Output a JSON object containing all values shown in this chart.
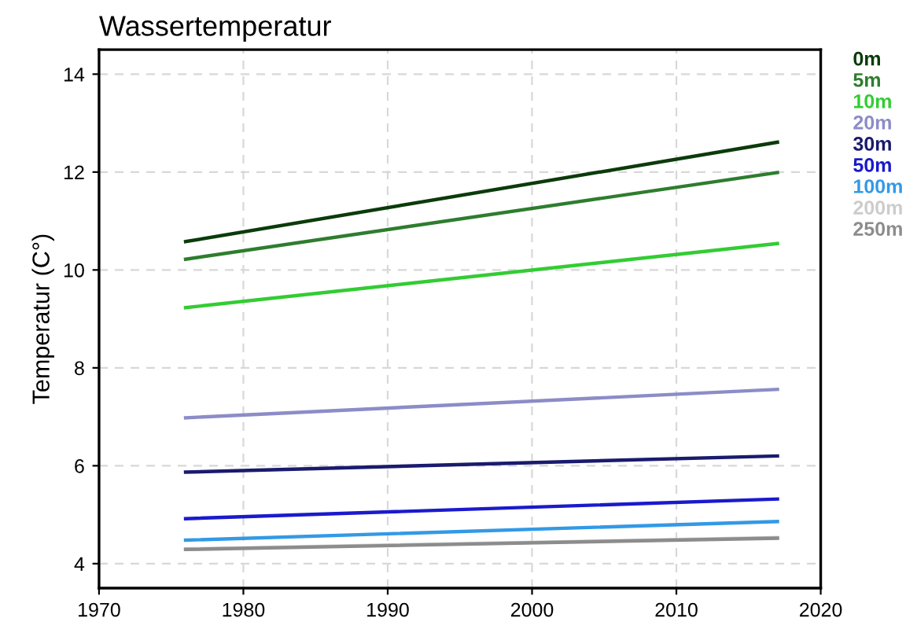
{
  "chart_data": {
    "type": "line",
    "title": "Wassertemperatur",
    "ylabel": "Temperatur (C°)",
    "x": [
      1976,
      2017
    ],
    "series": [
      {
        "name": "0m",
        "color": "#0b3b0b",
        "values": [
          10.58,
          12.61
        ]
      },
      {
        "name": "5m",
        "color": "#2e7d2e",
        "values": [
          10.22,
          11.99
        ]
      },
      {
        "name": "10m",
        "color": "#33cc33",
        "values": [
          9.23,
          10.54
        ]
      },
      {
        "name": "20m",
        "color": "#8c8cc8",
        "values": [
          6.98,
          7.56
        ]
      },
      {
        "name": "30m",
        "color": "#1a1a6e",
        "values": [
          5.87,
          6.2
        ]
      },
      {
        "name": "50m",
        "color": "#1a1acc",
        "values": [
          4.92,
          5.32
        ]
      },
      {
        "name": "100m",
        "color": "#3399e6",
        "values": [
          4.48,
          4.86
        ]
      },
      {
        "name": "200m",
        "color": "#cccccc",
        "values": [
          4.3,
          4.53
        ]
      },
      {
        "name": "250m",
        "color": "#8c8c8c",
        "values": [
          4.29,
          4.52
        ]
      }
    ],
    "xlim": [
      1970,
      2020
    ],
    "xticks": [
      1970,
      1980,
      1990,
      2000,
      2010,
      2020
    ],
    "ylim": [
      3.5,
      14.5
    ],
    "yticks": [
      4,
      6,
      8,
      10,
      12,
      14
    ],
    "grid": true,
    "legend": "top right",
    "marker": "none",
    "line_style": "solid"
  }
}
